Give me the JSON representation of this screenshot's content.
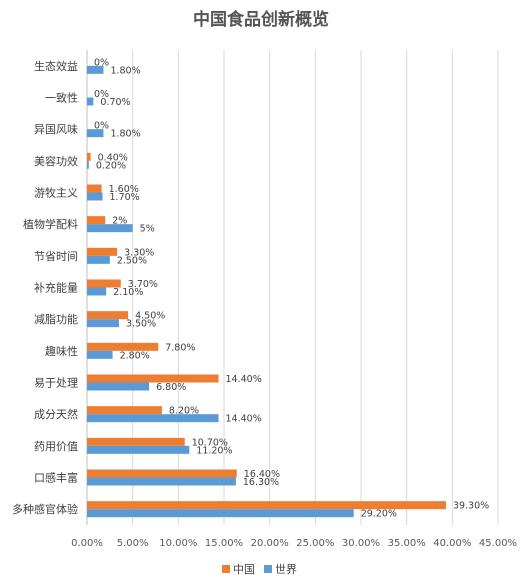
{
  "chart_data": {
    "type": "bar",
    "orientation": "horizontal",
    "title": "中国食品创新概览",
    "categories": [
      "生态效益",
      "一致性",
      "异国风味",
      "美容功效",
      "游牧主义",
      "植物学配料",
      "节省时间",
      "补充能量",
      "减脂功能",
      "趣味性",
      "易于处理",
      "成分天然",
      "药用价值",
      "口感丰富",
      "多种感官体验"
    ],
    "series": [
      {
        "name": "中国",
        "color": "#ED7D31",
        "values": [
          0,
          0,
          0,
          0.4,
          1.6,
          2,
          3.3,
          3.7,
          4.5,
          7.8,
          14.4,
          8.2,
          10.7,
          16.4,
          39.3
        ],
        "labels": [
          "0%",
          "0%",
          "0%",
          "0.40%",
          "1.60%",
          "2%",
          "3.30%",
          "3.70%",
          "4.50%",
          "7.80%",
          "14.40%",
          "8.20%",
          "10.70%",
          "16.40%",
          "39.30%"
        ]
      },
      {
        "name": "世界",
        "color": "#5B9BD5",
        "values": [
          1.8,
          0.7,
          1.8,
          0.2,
          1.7,
          5,
          2.5,
          2.1,
          3.5,
          2.8,
          6.8,
          14.4,
          11.2,
          16.3,
          29.2
        ],
        "labels": [
          "1.80%",
          "0.70%",
          "1.80%",
          "0.20%",
          "1.70%",
          "5%",
          "2.50%",
          "2.10%",
          "3.50%",
          "2.80%",
          "6.80%",
          "14.40%",
          "11.20%",
          "16.30%",
          "29.20%"
        ]
      }
    ],
    "xlim": [
      0,
      45
    ],
    "xticks": [
      "0.00%",
      "5.00%",
      "10.00%",
      "15.00%",
      "20.00%",
      "25.00%",
      "30.00%",
      "35.00%",
      "40.00%",
      "45.00%"
    ],
    "grid": true,
    "legend_position": "bottom"
  }
}
